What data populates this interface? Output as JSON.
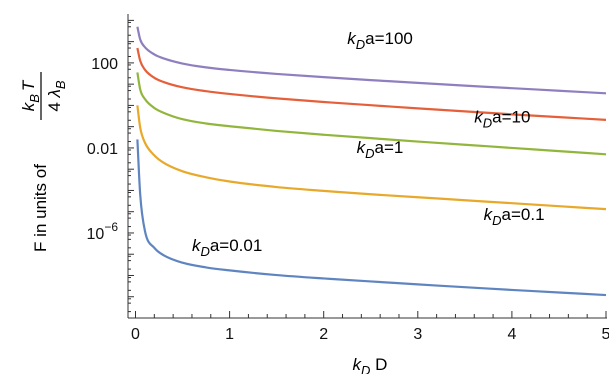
{
  "chart_data": {
    "type": "line",
    "x_axis": {
      "label_var": "k",
      "label_sub": "D",
      "label_tail": " D",
      "range": [
        0,
        5
      ],
      "ticks": [
        {
          "value": 0,
          "label": "0"
        },
        {
          "value": 1,
          "label": "1"
        },
        {
          "value": 2,
          "label": "2"
        },
        {
          "value": 3,
          "label": "3"
        },
        {
          "value": 4,
          "label": "4"
        },
        {
          "value": 5,
          "label": "5"
        }
      ]
    },
    "y_axis": {
      "scale": "log",
      "label_prefix": "F in units of",
      "label_num_var": "k",
      "label_num_sub": "B",
      "label_num_tail": "T",
      "label_den_head": "4",
      "label_den_var": "λ",
      "label_den_sub": "B",
      "range_log10": [
        -10,
        4.3
      ],
      "ticks": [
        {
          "log10": 2,
          "label": "100"
        },
        {
          "log10": -2,
          "label": "0.01"
        },
        {
          "log10": -6,
          "label_base": "10",
          "label_exp": "−6"
        }
      ]
    },
    "grid": false,
    "series": [
      {
        "label_var": "k",
        "label_sub": "D",
        "label_tail": "a=100",
        "color": "#8F7FBE",
        "x": [
          0.02,
          0.05,
          0.1,
          0.2,
          0.3,
          0.5,
          0.75,
          1,
          1.5,
          2,
          2.5,
          3,
          3.5,
          4,
          4.5,
          5
        ],
        "log10_y": [
          3.7,
          3.1,
          2.74,
          2.4,
          2.21,
          1.97,
          1.79,
          1.67,
          1.48,
          1.33,
          1.19,
          1.06,
          0.93,
          0.81,
          0.69,
          0.57
        ]
      },
      {
        "label_var": "k",
        "label_sub": "D",
        "label_tail": "a=10",
        "color": "#E5603A",
        "x": [
          0.02,
          0.05,
          0.1,
          0.2,
          0.3,
          0.5,
          0.75,
          1,
          1.5,
          2,
          2.5,
          3,
          3.5,
          4,
          4.5,
          5
        ],
        "log10_y": [
          2.7,
          2.1,
          1.68,
          1.3,
          1.1,
          0.85,
          0.67,
          0.54,
          0.33,
          0.16,
          0.01,
          -0.14,
          -0.28,
          -0.42,
          -0.55,
          -0.68
        ]
      },
      {
        "label_var": "k",
        "label_sub": "D",
        "label_tail": "a=1",
        "color": "#92B63C",
        "x": [
          0.02,
          0.05,
          0.1,
          0.2,
          0.3,
          0.5,
          0.75,
          1,
          1.5,
          2,
          2.5,
          3,
          3.5,
          4,
          4.5,
          5
        ],
        "log10_y": [
          1.55,
          0.75,
          0.3,
          -0.12,
          -0.35,
          -0.65,
          -0.85,
          -0.98,
          -1.2,
          -1.38,
          -1.54,
          -1.7,
          -1.85,
          -2.0,
          -2.15,
          -2.3
        ]
      },
      {
        "label_var": "k",
        "label_sub": "D",
        "label_tail": "a=0.1",
        "color": "#E8A92A",
        "x": [
          0.02,
          0.05,
          0.1,
          0.2,
          0.3,
          0.5,
          0.75,
          1,
          1.5,
          2,
          2.5,
          3,
          3.5,
          4,
          4.5,
          5
        ],
        "log10_y": [
          0.0,
          -1.05,
          -1.75,
          -2.35,
          -2.7,
          -3.1,
          -3.38,
          -3.58,
          -3.84,
          -4.02,
          -4.18,
          -4.32,
          -4.46,
          -4.6,
          -4.74,
          -4.88
        ]
      },
      {
        "label_var": "k",
        "label_sub": "D",
        "label_tail": "a=0.01",
        "color": "#5F85C0",
        "x": [
          0.02,
          0.05,
          0.1,
          0.2,
          0.3,
          0.5,
          0.75,
          1,
          1.5,
          2,
          2.5,
          3,
          3.5,
          4,
          4.5,
          5
        ],
        "log10_y": [
          -1.6,
          -4.2,
          -5.9,
          -6.7,
          -7.05,
          -7.4,
          -7.62,
          -7.76,
          -7.98,
          -8.14,
          -8.28,
          -8.42,
          -8.55,
          -8.68,
          -8.8,
          -8.92
        ]
      }
    ],
    "curve_label_positions_data": [
      {
        "x": 2.25,
        "log10_y": 2.9
      },
      {
        "x": 3.6,
        "log10_y": -0.8
      },
      {
        "x": 2.35,
        "log10_y": -2.25
      },
      {
        "x": 3.7,
        "log10_y": -5.4
      },
      {
        "x": 0.6,
        "log10_y": -6.85
      }
    ]
  }
}
